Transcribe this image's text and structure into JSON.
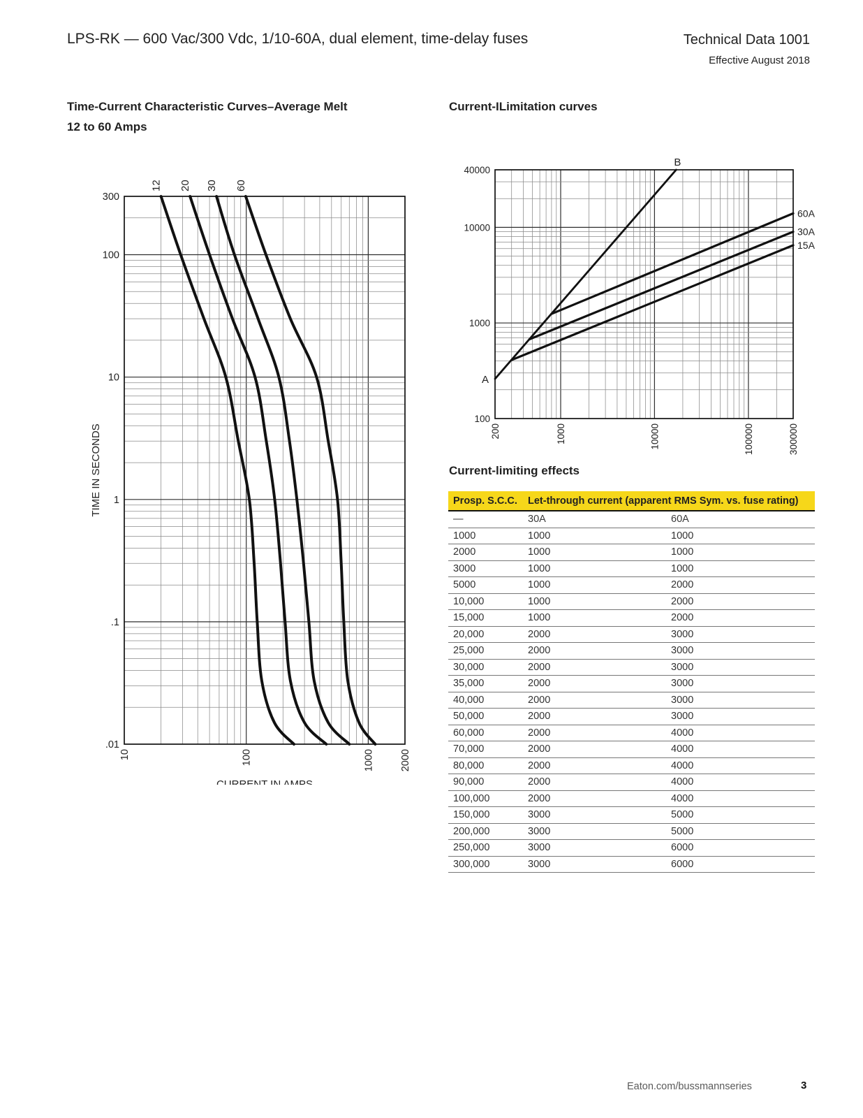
{
  "header": {
    "product_title": "LPS-RK — 600 Vac/300 Vdc, 1/10-60A, dual element, time-delay fuses",
    "doc_title": "Technical Data 1001",
    "effective": "Effective August 2018"
  },
  "footer": {
    "site": "Eaton.com/bussmannseries",
    "page_number": "3"
  },
  "colors": {
    "table_accent": "#f6d71a",
    "ink": "#111111",
    "grid_minor": "#8a8a8a",
    "grid_major": "#2f2f2f"
  },
  "chart_data": [
    {
      "type": "line",
      "name": "time-current-characteristic",
      "title": "Time-Current Characteristic Curves–Average Melt",
      "subtitle": "12 to 60 Amps",
      "xlabel": "CURRENT IN AMPS",
      "ylabel": "TIME IN SECONDS",
      "xscale": "log",
      "yscale": "log",
      "grid": true,
      "xlim": [
        10,
        2000
      ],
      "ylim": [
        0.01,
        300
      ],
      "xticks": [
        {
          "v": 10,
          "label": "10"
        },
        {
          "v": 100,
          "label": "100"
        },
        {
          "v": 1000,
          "label": "1000"
        },
        {
          "v": 2000,
          "label": "2000"
        }
      ],
      "yticks": [
        {
          "v": 300,
          "label": "300"
        },
        {
          "v": 100,
          "label": "100"
        },
        {
          "v": 10,
          "label": "10"
        },
        {
          "v": 1,
          "label": "1"
        },
        {
          "v": 0.1,
          "label": ".1"
        },
        {
          "v": 0.01,
          "label": ".01"
        }
      ],
      "series": [
        {
          "name": "fuse-12A",
          "label": "12",
          "label_pos": "top",
          "points": [
            [
              20,
              300
            ],
            [
              29,
              100
            ],
            [
              45,
              30
            ],
            [
              68,
              10
            ],
            [
              86,
              3
            ],
            [
              106,
              1
            ],
            [
              116,
              0.3
            ],
            [
              123,
              0.1
            ],
            [
              134,
              0.033
            ],
            [
              170,
              0.015
            ],
            [
              246,
              0.01
            ]
          ]
        },
        {
          "name": "fuse-20A",
          "label": "20",
          "label_pos": "top",
          "points": [
            [
              34.6,
              300
            ],
            [
              50,
              100
            ],
            [
              77,
              30
            ],
            [
              118,
              10
            ],
            [
              146,
              3
            ],
            [
              171,
              1
            ],
            [
              191,
              0.3
            ],
            [
              208,
              0.1
            ],
            [
              230,
              0.033
            ],
            [
              300,
              0.015
            ],
            [
              453,
              0.01
            ]
          ]
        },
        {
          "name": "fuse-30A",
          "label": "30",
          "label_pos": "top",
          "points": [
            [
              57,
              300
            ],
            [
              80,
              100
            ],
            [
              125,
              30
            ],
            [
              185,
              10
            ],
            [
              226,
              3
            ],
            [
              260,
              1
            ],
            [
              295,
              0.3
            ],
            [
              326,
              0.1
            ],
            [
              360,
              0.033
            ],
            [
              470,
              0.015
            ],
            [
              700,
              0.01
            ]
          ]
        },
        {
          "name": "fuse-60A",
          "label": "60",
          "label_pos": "top",
          "points": [
            [
              99,
              300
            ],
            [
              145,
              100
            ],
            [
              230,
              30
            ],
            [
              377,
              10
            ],
            [
              470,
              3
            ],
            [
              560,
              1
            ],
            [
              600,
              0.3
            ],
            [
              630,
              0.1
            ],
            [
              680,
              0.033
            ],
            [
              840,
              0.015
            ],
            [
              1140,
              0.01
            ]
          ]
        }
      ]
    },
    {
      "type": "line",
      "name": "current-limitation",
      "title": "Current-ILimitation curves",
      "xlabel": "",
      "ylabel": "",
      "xscale": "log",
      "yscale": "log",
      "grid": true,
      "xlim": [
        200,
        300000
      ],
      "ylim": [
        100,
        40000
      ],
      "xticks": [
        {
          "v": 200,
          "label": "200"
        },
        {
          "v": 1000,
          "label": "1000"
        },
        {
          "v": 10000,
          "label": "10000"
        },
        {
          "v": 100000,
          "label": "100000"
        },
        {
          "v": 300000,
          "label": "300000"
        }
      ],
      "yticks": [
        {
          "v": 40000,
          "label": "40000"
        },
        {
          "v": 10000,
          "label": "10000"
        },
        {
          "v": 1000,
          "label": "1000"
        },
        {
          "v": 100,
          "label": "100"
        }
      ],
      "series": [
        {
          "name": "prospective-peak-line",
          "start_label": "A",
          "end_label": "B",
          "width": 2.8,
          "points": [
            [
              200,
              260
            ],
            [
              17000,
              40000
            ]
          ]
        },
        {
          "name": "let-through-60A",
          "label": "60A",
          "label_pos": "right",
          "width": 3.2,
          "points": [
            [
              800,
              1245
            ],
            [
              300000,
              14000
            ]
          ]
        },
        {
          "name": "let-through-30A",
          "label": "30A",
          "label_pos": "right",
          "width": 3.2,
          "points": [
            [
              466,
              676
            ],
            [
              300000,
              9000
            ]
          ]
        },
        {
          "name": "let-through-15A",
          "label": "15A",
          "label_pos": "right",
          "width": 3.2,
          "points": [
            [
              300,
              410
            ],
            [
              300000,
              6500
            ]
          ]
        }
      ]
    }
  ],
  "table": {
    "title": "Current-limiting effects",
    "col1_header": "Prosp. S.C.C.",
    "col23_header": "Let-through current (apparent RMS Sym. vs. fuse rating)",
    "subheader": [
      "—",
      "30A",
      "60A"
    ],
    "rows": [
      [
        "1000",
        "1000",
        "1000"
      ],
      [
        "2000",
        "1000",
        "1000"
      ],
      [
        "3000",
        "1000",
        "1000"
      ],
      [
        "5000",
        "1000",
        "2000"
      ],
      [
        "10,000",
        "1000",
        "2000"
      ],
      [
        "15,000",
        "1000",
        "2000"
      ],
      [
        "20,000",
        "2000",
        "3000"
      ],
      [
        "25,000",
        "2000",
        "3000"
      ],
      [
        "30,000",
        "2000",
        "3000"
      ],
      [
        "35,000",
        "2000",
        "3000"
      ],
      [
        "40,000",
        "2000",
        "3000"
      ],
      [
        "50,000",
        "2000",
        "3000"
      ],
      [
        "60,000",
        "2000",
        "4000"
      ],
      [
        "70,000",
        "2000",
        "4000"
      ],
      [
        "80,000",
        "2000",
        "4000"
      ],
      [
        "90,000",
        "2000",
        "4000"
      ],
      [
        "100,000",
        "2000",
        "4000"
      ],
      [
        "150,000",
        "3000",
        "5000"
      ],
      [
        "200,000",
        "3000",
        "5000"
      ],
      [
        "250,000",
        "3000",
        "6000"
      ],
      [
        "300,000",
        "3000",
        "6000"
      ]
    ]
  }
}
